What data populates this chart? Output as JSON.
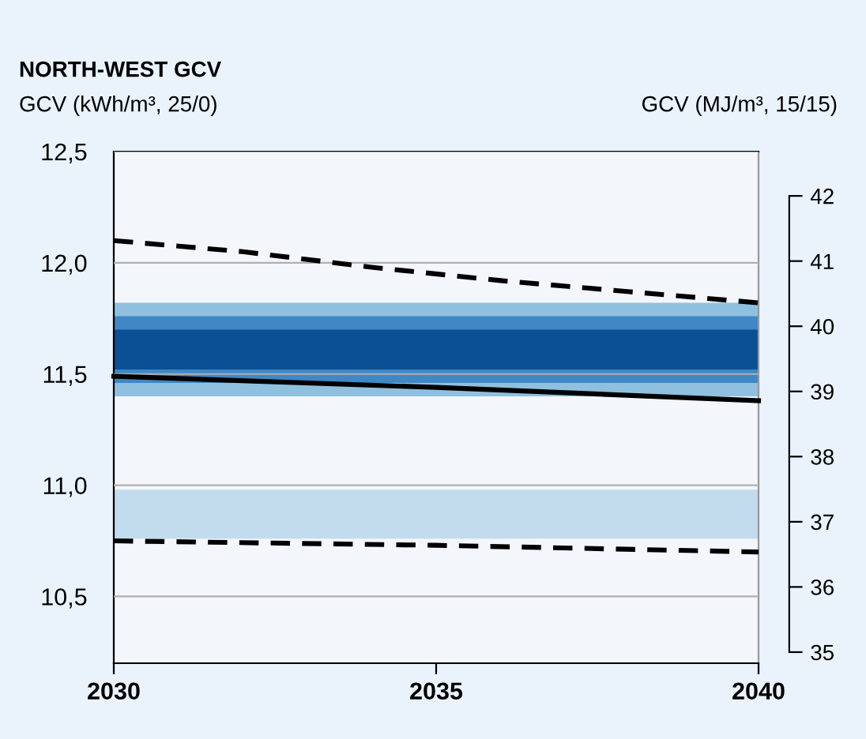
{
  "chart_data": {
    "type": "line",
    "title": "NORTH-WEST GCV",
    "ylabel": "GCV (kWh/m³, 25/0)",
    "y2label": "GCV (MJ/m³, 15/15)",
    "xlim": [
      2030,
      2040
    ],
    "xticks": [
      2030,
      2035,
      2040
    ],
    "ylim": [
      10.2,
      12.5
    ],
    "yticks": [
      {
        "value": 10.5,
        "label": "10,5"
      },
      {
        "value": 11.0,
        "label": "11,0"
      },
      {
        "value": 11.5,
        "label": "11,5"
      },
      {
        "value": 12.0,
        "label": "12,0"
      },
      {
        "value": 12.5,
        "label": "12,5"
      }
    ],
    "y2lim": [
      34.83,
      42.68
    ],
    "y2ticks": [
      35,
      36,
      37,
      38,
      39,
      40,
      41,
      42
    ],
    "grid": "y",
    "bands": [
      {
        "axis": "y",
        "from": 11.4,
        "to": 11.82,
        "color": "#8fc0e0"
      },
      {
        "axis": "y",
        "from": 11.46,
        "to": 11.76,
        "color": "#3f88c5"
      },
      {
        "axis": "y",
        "from": 11.52,
        "to": 11.7,
        "color": "#0b4f94"
      },
      {
        "axis": "y",
        "from": 10.76,
        "to": 10.98,
        "color": "#c2dcee"
      }
    ],
    "series": [
      {
        "color": "#000000",
        "line_style": "dashed",
        "x": [
          2030,
          2032,
          2034,
          2036,
          2038,
          2040
        ],
        "values": [
          12.1,
          12.05,
          11.98,
          11.92,
          11.87,
          11.82
        ]
      },
      {
        "color": "#000000",
        "line_style": "solid",
        "x": [
          2030,
          2035,
          2040
        ],
        "values": [
          11.49,
          11.44,
          11.38
        ]
      },
      {
        "color": "#000000",
        "line_style": "dashed",
        "x": [
          2030,
          2035,
          2040
        ],
        "values": [
          10.75,
          10.73,
          10.7
        ]
      }
    ]
  }
}
